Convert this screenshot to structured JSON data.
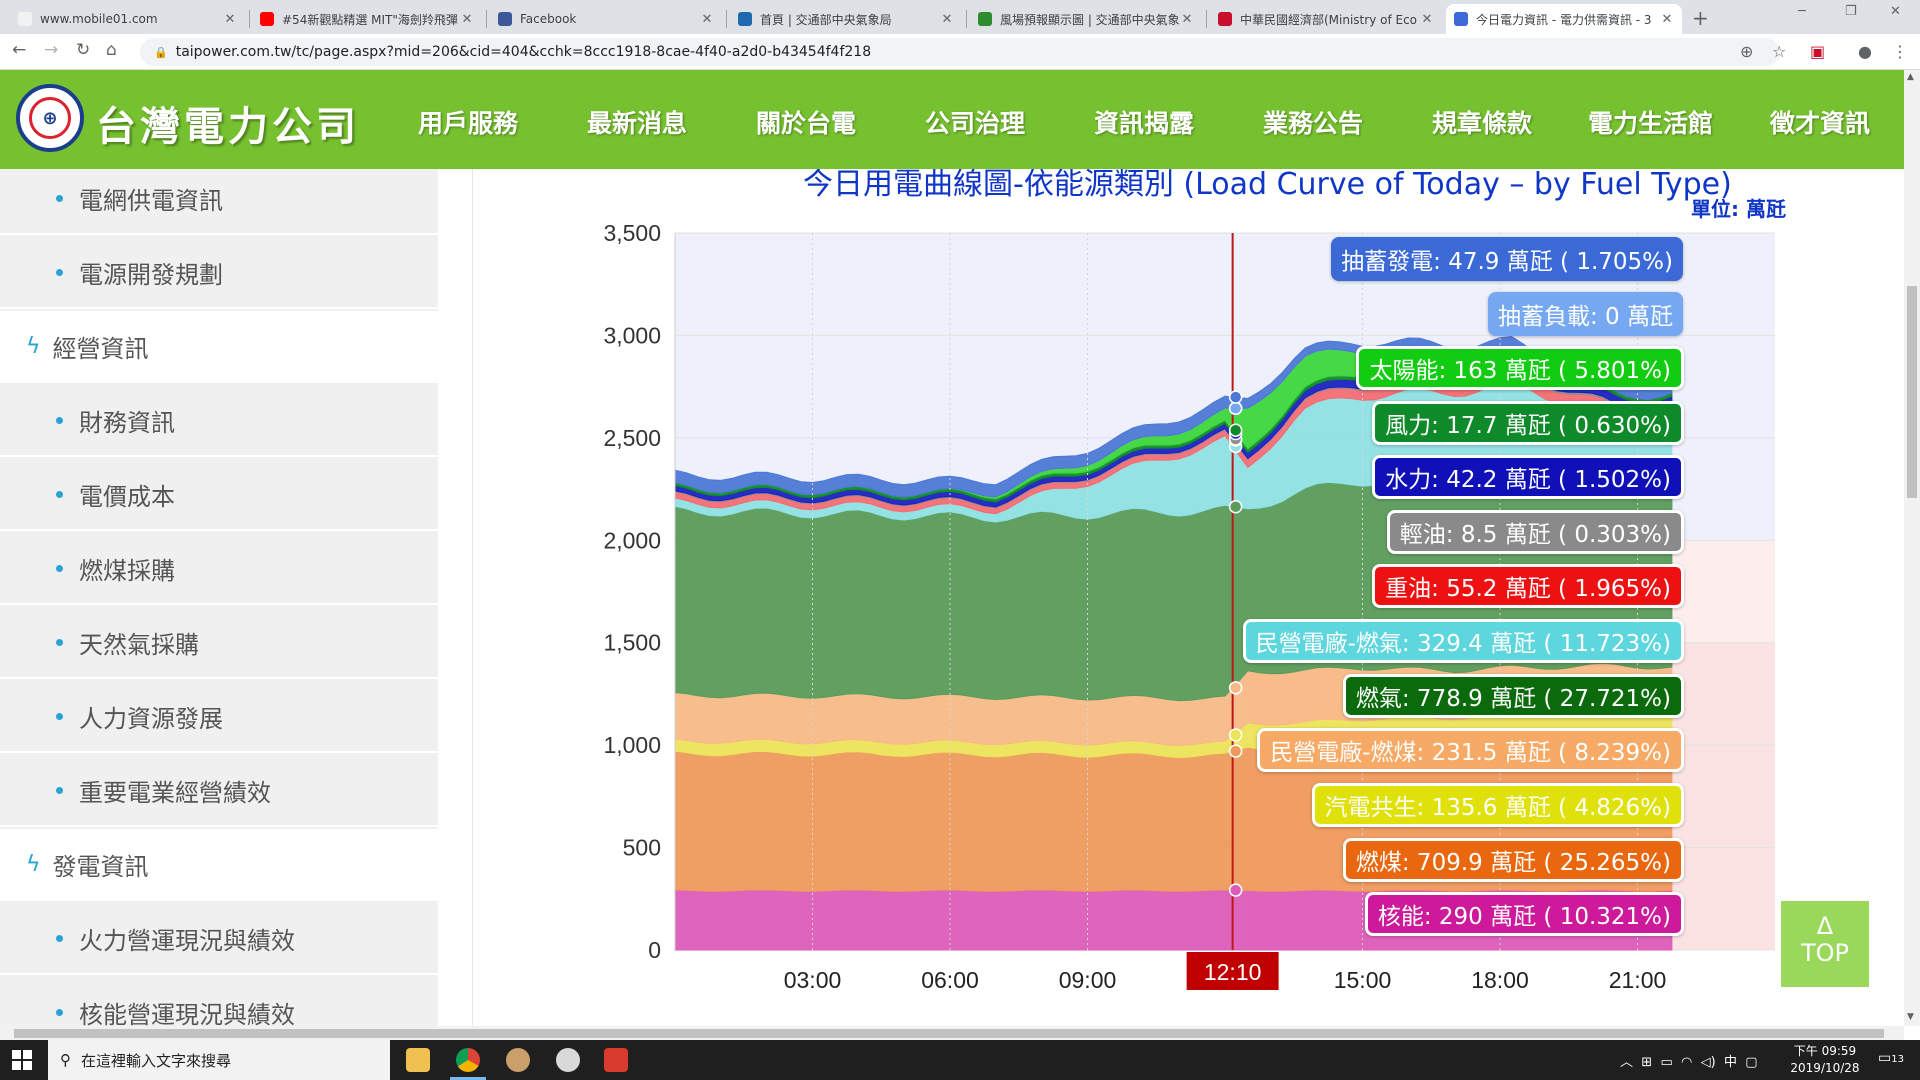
{
  "browser": {
    "tabs": [
      {
        "title": "www.mobile01.com",
        "favicon": "#f2f2f2"
      },
      {
        "title": "#54新觀點精選 MIT\"海劍羚飛彈",
        "favicon": "#ff0000"
      },
      {
        "title": "Facebook",
        "favicon": "#3b5998"
      },
      {
        "title": "首頁 | 交通部中央氣象局",
        "favicon": "#1e6ab0"
      },
      {
        "title": "風場預報顯示圖 | 交通部中央氣象",
        "favicon": "#2e8b2e"
      },
      {
        "title": "中華民國經濟部(Ministry of Eco",
        "favicon": "#c8102e"
      },
      {
        "title": "今日電力資訊 - 電力供需資訊 - 3",
        "favicon": "#3b6ad6"
      }
    ],
    "new_tab": "+",
    "url": "taipower.com.tw/tc/page.aspx?mid=206&cid=404&cchk=8ccc1918-8cae-4f40-a2d0-b43454f4f218"
  },
  "site": {
    "company": "台灣電力公司",
    "nav": [
      "用戶服務",
      "最新消息",
      "關於台電",
      "公司治理",
      "資訊揭露",
      "業務公告",
      "規章條款",
      "電力生活館",
      "徵才資訊"
    ]
  },
  "sidebar": {
    "items": [
      {
        "label": "電網供電資訊",
        "type": "sub"
      },
      {
        "label": "電源開發規劃",
        "type": "sub"
      },
      {
        "label": "經營資訊",
        "type": "section"
      },
      {
        "label": "財務資訊",
        "type": "sub"
      },
      {
        "label": "電價成本",
        "type": "sub"
      },
      {
        "label": "燃煤採購",
        "type": "sub"
      },
      {
        "label": "天然氣採購",
        "type": "sub"
      },
      {
        "label": "人力資源發展",
        "type": "sub"
      },
      {
        "label": "重要電業經營績效",
        "type": "sub"
      },
      {
        "label": "發電資訊",
        "type": "section"
      },
      {
        "label": "火力營運現況與績效",
        "type": "sub"
      },
      {
        "label": "核能營運現況與績效",
        "type": "sub"
      }
    ]
  },
  "chart_data": {
    "type": "area",
    "title": "今日用電曲線圖-依能源類別 (Load Curve of Today – by Fuel Type)",
    "unit": "單位: 萬瓩",
    "yticks": [
      "0",
      "500",
      "1,000",
      "1,500",
      "2,000",
      "2,500",
      "3,000",
      "3,500"
    ],
    "ylim": [
      0,
      3500
    ],
    "xticks": [
      "03:00",
      "06:00",
      "09:00",
      "15:00",
      "18:00",
      "21:00"
    ],
    "xlim_hours": [
      0,
      24
    ],
    "current_time": "12:10",
    "series": [
      {
        "name": "核能",
        "color": "#dd5cba",
        "start": [
          290,
          290
        ],
        "values": [
          290,
          290,
          290,
          290,
          290,
          290,
          290,
          290,
          290
        ]
      },
      {
        "name": "燃煤",
        "color": "#ef9a5c",
        "start": [
          670,
          660
        ],
        "values": [
          700,
          690,
          710,
          720,
          715,
          720,
          722,
          720,
          722
        ]
      },
      {
        "name": "汽電共生",
        "color": "#ece458",
        "start": [
          60,
          58
        ],
        "values": [
          120,
          125,
          130,
          120,
          130,
          150,
          140,
          140,
          135
        ]
      },
      {
        "name": "民營電廠-燃煤",
        "color": "#f8b986",
        "start": [
          225,
          220
        ],
        "values": [
          250,
          255,
          250,
          240,
          230,
          220,
          230,
          240,
          232
        ]
      },
      {
        "name": "燃氣",
        "color": "#5a9b5a",
        "start": [
          900,
          860
        ],
        "values": [
          790,
          880,
          905,
          925,
          940,
          960,
          935,
          900,
          915
        ]
      },
      {
        "name": "民營電廠-燃氣",
        "color": "#8fe0e4",
        "start": [
          40,
          40
        ],
        "values": [
          200,
          390,
          420,
          420,
          420,
          420,
          360,
          300,
          310
        ]
      },
      {
        "name": "重油",
        "color": "#f26d73",
        "start": [
          30,
          28
        ],
        "values": [
          40,
          45,
          48,
          52,
          55,
          58,
          56,
          52,
          50
        ]
      },
      {
        "name": "輕油",
        "color": "#8e8e8e",
        "start": [
          5,
          5
        ],
        "values": [
          3,
          5,
          6,
          8,
          9,
          9,
          9,
          8,
          8
        ]
      },
      {
        "name": "水力",
        "color": "#1b22c0",
        "start": [
          25,
          25
        ],
        "values": [
          30,
          35,
          38,
          40,
          42,
          44,
          42,
          40,
          38
        ]
      },
      {
        "name": "風力",
        "color": "#0f8a2a",
        "start": [
          15,
          15
        ],
        "values": [
          18,
          18,
          18,
          18,
          18,
          18,
          18,
          18,
          18
        ]
      },
      {
        "name": "太陽能",
        "color": "#3cd63c",
        "start": [
          0,
          0
        ],
        "values": [
          200,
          150,
          120,
          90,
          60,
          30,
          0,
          0,
          0
        ]
      },
      {
        "name": "抽蓄負載",
        "color": "#76a8f2",
        "start": [
          0,
          0
        ],
        "values": [
          0,
          0,
          0,
          0,
          0,
          0,
          0,
          0,
          0
        ]
      },
      {
        "name": "抽蓄發電",
        "color": "#4d78d6",
        "start": [
          60,
          58
        ],
        "values": [
          48,
          40,
          38,
          40,
          45,
          50,
          48,
          46,
          44
        ]
      }
    ],
    "end_hour": 21.75,
    "tooltips": [
      {
        "label": "抽蓄發電: 47.9 萬瓩 ( 1.705%)",
        "color": "#3b6ad6"
      },
      {
        "label": "抽蓄負載: 0 萬瓩",
        "color": "#76a8f2"
      },
      {
        "label": "太陽能: 163 萬瓩 ( 5.801%)",
        "color": "#11cc11"
      },
      {
        "label": "風力: 17.7 萬瓩 ( 0.630%)",
        "color": "#0f8a2a"
      },
      {
        "label": "水力: 42.2 萬瓩 ( 1.502%)",
        "color": "#1010b8"
      },
      {
        "label": "輕油: 8.5 萬瓩 ( 0.303%)",
        "color": "#8a8a8a"
      },
      {
        "label": "重油: 55.2 萬瓩 ( 1.965%)",
        "color": "#ee1111"
      },
      {
        "label": "民營電廠-燃氣: 329.4 萬瓩 ( 11.723%)",
        "color": "#5dd6de"
      },
      {
        "label": "燃氣: 778.9 萬瓩 ( 27.721%)",
        "color": "#0b6a0b"
      },
      {
        "label": "民營電廠-燃煤: 231.5 萬瓩 ( 8.239%)",
        "color": "#f6aa66"
      },
      {
        "label": "汽電共生: 135.6 萬瓩 ( 4.826%)",
        "color": "#e0e00a"
      },
      {
        "label": "燃煤: 709.9 萬瓩 ( 25.265%)",
        "color": "#e9670e"
      },
      {
        "label": "核能: 290 萬瓩 ( 10.321%)",
        "color": "#cc1a9a"
      }
    ]
  },
  "to_top": {
    "arrow": "Δ",
    "label": "TOP"
  },
  "taskbar": {
    "search_placeholder": "在這裡輸入文字來搜尋",
    "time": "下午 09:59",
    "date": "2019/10/28",
    "notifications": "13",
    "ime": "中"
  }
}
